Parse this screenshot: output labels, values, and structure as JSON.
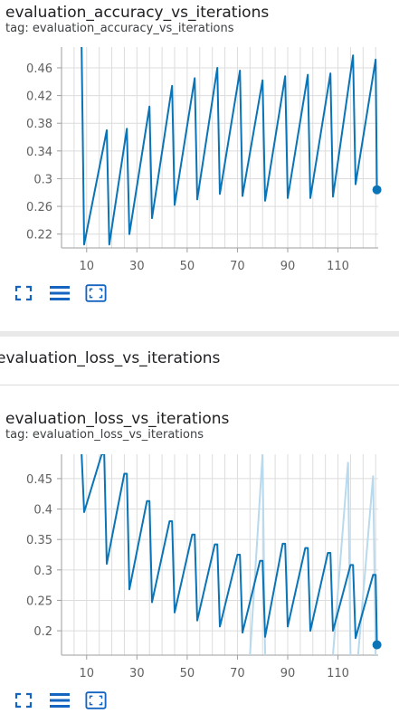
{
  "card1": {
    "title": "evaluation_accuracy_vs_iterations",
    "tag": "tag: evaluation_accuracy_vs_iterations"
  },
  "group2": {
    "title": "evaluation_loss_vs_iterations"
  },
  "card2": {
    "title": "evaluation_loss_vs_iterations",
    "tag": "tag: evaluation_loss_vs_iterations"
  },
  "colors": {
    "main": "#0a74b6",
    "faint": "#b9d9ec",
    "grid": "#dcdcdc",
    "axis": "#9e9e9e",
    "icon": "#1565c0"
  },
  "icons": [
    "fullscreen-icon",
    "toggle-lines-icon",
    "fit-domain-icon"
  ],
  "chart_data": [
    {
      "type": "line",
      "title": "",
      "xlabel": "",
      "ylabel": "",
      "xlim": [
        0,
        126
      ],
      "ylim": [
        0.2,
        0.49
      ],
      "xticks": [
        10,
        30,
        50,
        70,
        90,
        110
      ],
      "yticks": [
        0.22,
        0.26,
        0.3,
        0.34,
        0.38,
        0.42,
        0.46
      ],
      "grid": true,
      "series": [
        {
          "name": "",
          "x": [
            8,
            9,
            18,
            19,
            26,
            27,
            35,
            36,
            44,
            45,
            53,
            54,
            62,
            63,
            71,
            72,
            80,
            81,
            89,
            90,
            98,
            99,
            107,
            108,
            116,
            117,
            125,
            125.5
          ],
          "y": [
            0.49,
            0.205,
            0.37,
            0.205,
            0.372,
            0.22,
            0.404,
            0.243,
            0.434,
            0.262,
            0.445,
            0.27,
            0.46,
            0.278,
            0.456,
            0.275,
            0.442,
            0.268,
            0.448,
            0.272,
            0.45,
            0.272,
            0.452,
            0.274,
            0.478,
            0.292,
            0.472,
            0.284
          ]
        }
      ]
    },
    {
      "type": "line",
      "title": "",
      "xlabel": "",
      "ylabel": "",
      "xlim": [
        0,
        126
      ],
      "ylim": [
        0.16,
        0.49
      ],
      "xticks": [
        10,
        30,
        50,
        70,
        90,
        110
      ],
      "yticks": [
        0.2,
        0.25,
        0.3,
        0.35,
        0.4,
        0.45
      ],
      "grid": true,
      "series": [
        {
          "name": "",
          "x": [
            8,
            9,
            16,
            17,
            18,
            25,
            26,
            27,
            34,
            35,
            36,
            43,
            44,
            45,
            52,
            53,
            54,
            61,
            62,
            63,
            70,
            71,
            72,
            79,
            80,
            81,
            88,
            89,
            90,
            97,
            98,
            99,
            106,
            107,
            108,
            115,
            116,
            117,
            124,
            125,
            125.5
          ],
          "y": [
            0.49,
            0.395,
            0.49,
            0.49,
            0.31,
            0.458,
            0.458,
            0.268,
            0.413,
            0.413,
            0.247,
            0.38,
            0.38,
            0.23,
            0.358,
            0.358,
            0.217,
            0.342,
            0.342,
            0.207,
            0.325,
            0.325,
            0.197,
            0.315,
            0.315,
            0.19,
            0.343,
            0.343,
            0.207,
            0.336,
            0.336,
            0.2,
            0.328,
            0.328,
            0.2,
            0.308,
            0.308,
            0.188,
            0.292,
            0.292,
            0.177
          ]
        }
      ],
      "raw_series": [
        {
          "x": [
            75,
            80,
            81
          ],
          "y": [
            0.16,
            0.49,
            0.16
          ]
        },
        {
          "x": [
            108,
            114,
            115
          ],
          "y": [
            0.16,
            0.477,
            0.16
          ]
        },
        {
          "x": [
            118,
            124,
            125
          ],
          "y": [
            0.16,
            0.455,
            0.16
          ]
        }
      ]
    }
  ]
}
